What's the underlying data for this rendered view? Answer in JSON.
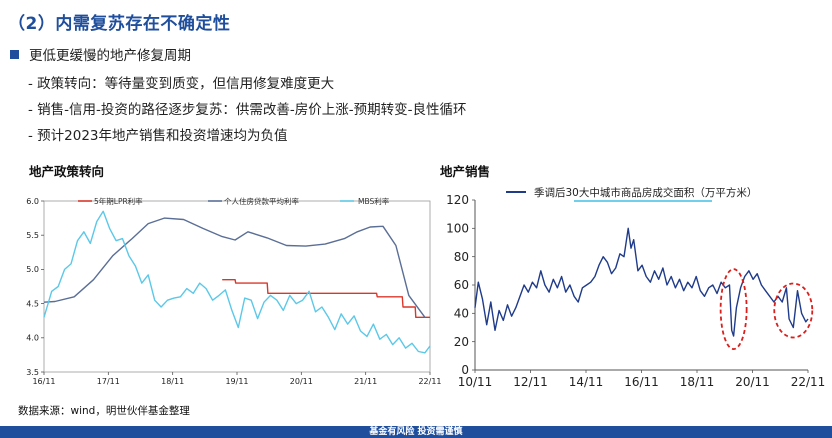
{
  "page": {
    "title": "（2）内需复苏存在不确定性",
    "bullet": "更低更缓慢的地产修复周期",
    "sub_items": [
      "- 政策转向：等待量变到质变，但信用修复难度更大",
      "- 销售-信用-投资的路径逐步复苏：供需改善-房价上涨-预期转变-良性循环",
      "- 预计2023年地产销售和投资增速均为负值"
    ],
    "source": "数据来源：wind，明世伙伴基金整理",
    "footer": "基金有风险  投资需谨慎",
    "colors": {
      "accent": "#1f4e9c",
      "lpr": "#d9372b",
      "mortgage": "#5a6e96",
      "mbs": "#5bc8e8",
      "sales": "#1f3b8a",
      "circle": "#d9201c"
    }
  },
  "chart_data": [
    {
      "type": "line",
      "title": "地产政策转向",
      "xlabel": "",
      "ylabel": "",
      "categories": [
        "16/11",
        "17/11",
        "18/11",
        "19/11",
        "20/11",
        "21/11",
        "22/11"
      ],
      "ylim": [
        3.5,
        6.0
      ],
      "yticks": [
        "3.5",
        "4.0",
        "4.5",
        "5.0",
        "5.5",
        "6.0"
      ],
      "x_range": [
        2016.83,
        2022.83
      ],
      "grid": false,
      "series": [
        {
          "name": "5年期LPR利率",
          "color": "#d9372b",
          "x": [
            2019.6,
            2019.8,
            2019.81,
            2020.3,
            2020.31,
            2021.3,
            2022.0,
            2022.01,
            2022.4,
            2022.41,
            2022.6,
            2022.61,
            2022.83
          ],
          "values": [
            4.85,
            4.85,
            4.8,
            4.8,
            4.65,
            4.65,
            4.65,
            4.6,
            4.6,
            4.45,
            4.45,
            4.3,
            4.3
          ]
        },
        {
          "name": "个人住房贷款平均利率",
          "color": "#5a6e96",
          "x": [
            2016.83,
            2017.0,
            2017.3,
            2017.6,
            2017.9,
            2018.2,
            2018.45,
            2018.7,
            2019.0,
            2019.3,
            2019.6,
            2019.8,
            2020.0,
            2020.3,
            2020.6,
            2020.9,
            2021.2,
            2021.5,
            2021.7,
            2021.9,
            2022.1,
            2022.3,
            2022.5,
            2022.75
          ],
          "values": [
            4.52,
            4.53,
            4.6,
            4.85,
            5.2,
            5.45,
            5.67,
            5.75,
            5.73,
            5.6,
            5.48,
            5.43,
            5.55,
            5.46,
            5.35,
            5.34,
            5.37,
            5.45,
            5.55,
            5.62,
            5.63,
            5.35,
            4.62,
            4.3
          ]
        },
        {
          "name": "MBS利率",
          "color": "#5bc8e8",
          "x": [
            2016.83,
            2016.95,
            2017.05,
            2017.15,
            2017.25,
            2017.35,
            2017.45,
            2017.55,
            2017.65,
            2017.75,
            2017.85,
            2017.95,
            2018.05,
            2018.15,
            2018.25,
            2018.35,
            2018.45,
            2018.55,
            2018.65,
            2018.75,
            2018.85,
            2018.95,
            2019.05,
            2019.15,
            2019.25,
            2019.35,
            2019.45,
            2019.55,
            2019.65,
            2019.75,
            2019.85,
            2019.95,
            2020.05,
            2020.15,
            2020.25,
            2020.35,
            2020.45,
            2020.55,
            2020.65,
            2020.75,
            2020.85,
            2020.95,
            2021.05,
            2021.15,
            2021.25,
            2021.35,
            2021.45,
            2021.55,
            2021.65,
            2021.75,
            2021.85,
            2021.95,
            2022.05,
            2022.15,
            2022.25,
            2022.35,
            2022.45,
            2022.55,
            2022.65,
            2022.75,
            2022.83
          ],
          "values": [
            4.3,
            4.68,
            4.75,
            5.0,
            5.08,
            5.42,
            5.55,
            5.38,
            5.7,
            5.85,
            5.6,
            5.42,
            5.45,
            5.2,
            5.05,
            4.8,
            4.92,
            4.55,
            4.45,
            4.55,
            4.58,
            4.6,
            4.72,
            4.65,
            4.8,
            4.72,
            4.55,
            4.62,
            4.7,
            4.4,
            4.15,
            4.58,
            4.55,
            4.28,
            4.52,
            4.62,
            4.55,
            4.4,
            4.62,
            4.5,
            4.55,
            4.68,
            4.38,
            4.45,
            4.3,
            4.12,
            4.35,
            4.2,
            4.32,
            4.1,
            4.02,
            4.2,
            3.98,
            4.05,
            3.9,
            4.0,
            3.85,
            3.92,
            3.8,
            3.78,
            3.88
          ]
        }
      ]
    },
    {
      "type": "line",
      "title": "地产销售",
      "xlabel": "",
      "ylabel": "",
      "categories": [
        "10/11",
        "12/11",
        "14/11",
        "16/11",
        "18/11",
        "20/11",
        "22/11"
      ],
      "ylim": [
        0,
        120
      ],
      "yticks": [
        "0",
        "20",
        "40",
        "60",
        "80",
        "100",
        "120"
      ],
      "x_range": [
        2010.83,
        2022.83
      ],
      "grid": false,
      "series": [
        {
          "name": "季调后30大中城市商品房成交面积（万平方米）",
          "color": "#1f3b8a",
          "x": [
            2010.83,
            2010.95,
            2011.1,
            2011.25,
            2011.4,
            2011.55,
            2011.7,
            2011.85,
            2012.0,
            2012.15,
            2012.3,
            2012.45,
            2012.6,
            2012.75,
            2012.9,
            2013.05,
            2013.2,
            2013.35,
            2013.5,
            2013.65,
            2013.8,
            2013.95,
            2014.1,
            2014.25,
            2014.4,
            2014.55,
            2014.7,
            2014.85,
            2015.0,
            2015.15,
            2015.3,
            2015.45,
            2015.6,
            2015.75,
            2015.9,
            2016.05,
            2016.2,
            2016.35,
            2016.45,
            2016.55,
            2016.7,
            2016.85,
            2017.0,
            2017.15,
            2017.3,
            2017.45,
            2017.6,
            2017.75,
            2017.9,
            2018.05,
            2018.2,
            2018.35,
            2018.5,
            2018.65,
            2018.8,
            2018.95,
            2019.1,
            2019.25,
            2019.4,
            2019.55,
            2019.7,
            2019.85,
            2020.0,
            2020.08,
            2020.15,
            2020.25,
            2020.4,
            2020.55,
            2020.7,
            2020.85,
            2021.0,
            2021.15,
            2021.3,
            2021.45,
            2021.6,
            2021.75,
            2021.9,
            2022.05,
            2022.15,
            2022.3,
            2022.45,
            2022.6,
            2022.75,
            2022.83
          ],
          "values": [
            44,
            62,
            50,
            32,
            48,
            28,
            42,
            35,
            46,
            38,
            44,
            52,
            60,
            55,
            62,
            58,
            70,
            60,
            55,
            64,
            58,
            66,
            55,
            60,
            52,
            48,
            58,
            60,
            62,
            66,
            74,
            80,
            76,
            68,
            72,
            82,
            80,
            100,
            86,
            92,
            70,
            74,
            66,
            62,
            70,
            64,
            72,
            60,
            66,
            58,
            64,
            56,
            62,
            58,
            66,
            56,
            52,
            58,
            60,
            54,
            62,
            58,
            60,
            28,
            24,
            44,
            58,
            66,
            70,
            64,
            68,
            60,
            56,
            52,
            48,
            52,
            48,
            58,
            36,
            30,
            56,
            40,
            34,
            36
          ]
        }
      ],
      "annotations": [
        "dashed circle around 2020 dip",
        "dashed circle around 2022 dip"
      ]
    }
  ]
}
